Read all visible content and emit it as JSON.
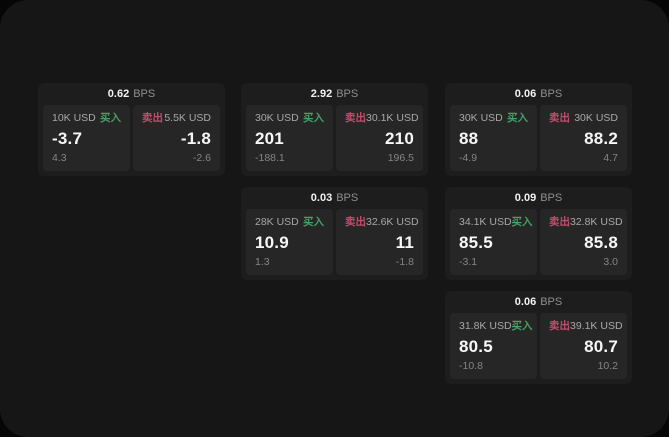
{
  "labels": {
    "buy": "买入",
    "sell": "卖出",
    "bps_unit": "BPS"
  },
  "colors": {
    "buy": "#4a9e68",
    "sell": "#c04f6d",
    "window_bg": "#161616",
    "card_bg": "#1d1d1d",
    "panel_bg": "#262626",
    "value_text": "#f7f7f7",
    "muted_text": "#8f8f8f"
  },
  "cards": [
    {
      "bps": "0.62",
      "buy": {
        "size": "10K USD",
        "value": "-3.7",
        "sub": "4.3"
      },
      "sell": {
        "size": "5.5K USD",
        "value": "-1.8",
        "sub": "-2.6"
      }
    },
    {
      "bps": "2.92",
      "buy": {
        "size": "30K USD",
        "value": "201",
        "sub": "-188.1"
      },
      "sell": {
        "size": "30.1K USD",
        "value": "210",
        "sub": "196.5"
      }
    },
    {
      "bps": "0.06",
      "buy": {
        "size": "30K USD",
        "value": "88",
        "sub": "-4.9"
      },
      "sell": {
        "size": "30K USD",
        "value": "88.2",
        "sub": "4.7"
      }
    },
    {
      "bps": "0.03",
      "buy": {
        "size": "28K USD",
        "value": "10.9",
        "sub": "1.3"
      },
      "sell": {
        "size": "32.6K USD",
        "value": "11",
        "sub": "-1.8"
      }
    },
    {
      "bps": "0.09",
      "buy": {
        "size": "34.1K USD",
        "value": "85.5",
        "sub": "-3.1"
      },
      "sell": {
        "size": "32.8K USD",
        "value": "85.8",
        "sub": "3.0"
      }
    },
    {
      "bps": "0.06",
      "buy": {
        "size": "31.8K USD",
        "value": "80.5",
        "sub": "-10.8"
      },
      "sell": {
        "size": "39.1K USD",
        "value": "80.7",
        "sub": "10.2"
      }
    }
  ]
}
